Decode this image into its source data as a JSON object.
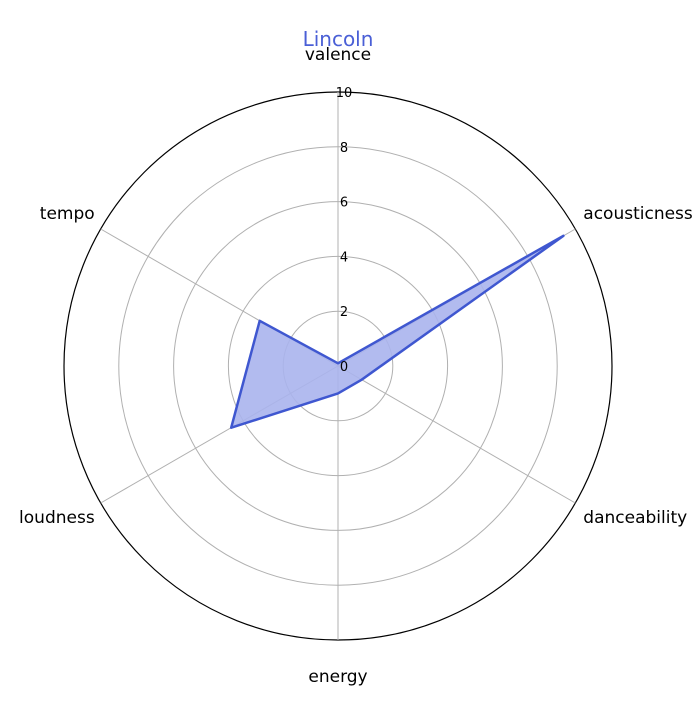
{
  "chart_data": {
    "type": "radar",
    "title": "Lincoln",
    "axes": [
      "valence",
      "acousticness",
      "danceability",
      "energy",
      "loudness",
      "tempo"
    ],
    "series": [
      {
        "values": [
          0.1,
          9.5,
          1.0,
          1.0,
          4.5,
          3.3
        ]
      }
    ],
    "rlim": [
      0,
      10
    ],
    "rticks": [
      0,
      2,
      4,
      6,
      8,
      10
    ],
    "grid": true,
    "colors": {
      "line": "#3f57d0",
      "fill": "#aab4ed",
      "grid": "#b0b0b0",
      "title": "#4a5fd6"
    }
  }
}
